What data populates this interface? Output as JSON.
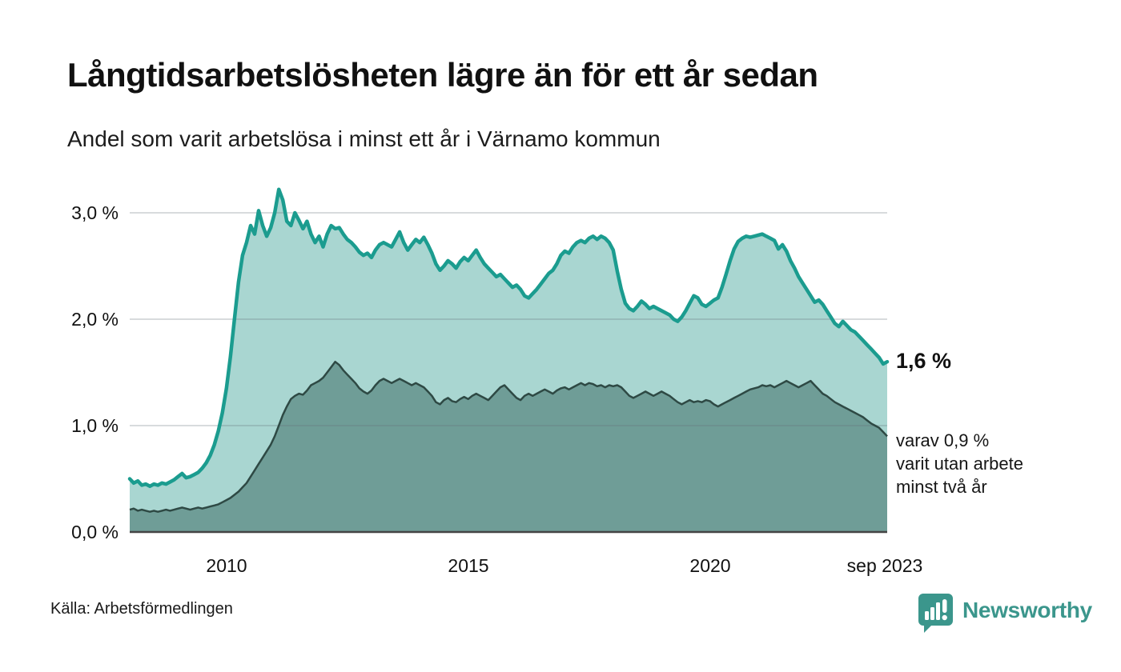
{
  "header": {
    "title": "Långtidsarbetslösheten lägre än för ett år sedan",
    "subtitle": "Andel som varit arbetslösa i minst ett år i Värnamo kommun"
  },
  "annotations": {
    "latest_value": "1,6 %",
    "secondary_line1": "varav 0,9 %",
    "secondary_line2": "varit utan arbete",
    "secondary_line3": "minst två år"
  },
  "footer": {
    "source": "Källa: Arbetsförmedlingen",
    "brand": "Newsworthy"
  },
  "colors": {
    "line_one_year": "#1b9c8f",
    "fill_one_year": "#a9d6d1",
    "line_two_year": "#2e4944",
    "fill_two_year": "#6f9d97",
    "gridline": "#e2e4e8",
    "baseline": "#444444",
    "brand_teal": "#3b968c",
    "text": "#111111"
  },
  "chart_data": {
    "type": "area",
    "title": "Långtidsarbetslösheten lägre än för ett år sedan",
    "subtitle": "Andel som varit arbetslösa i minst ett år i Värnamo kommun",
    "x_unit": "month",
    "x_start_year": 2008.0,
    "x_end_year": 2023.667,
    "x_end_label": "sep 2023",
    "x_tick_labels": [
      "2010",
      "2015",
      "2020",
      "sep 2023"
    ],
    "x_tick_years": [
      2010,
      2015,
      2020,
      2023.667
    ],
    "y_tick_labels": [
      "0,0 %",
      "1,0 %",
      "2,0 %",
      "3,0 %"
    ],
    "y_tick_values": [
      0,
      1,
      2,
      3
    ],
    "ylim": [
      0,
      3.3
    ],
    "grid": "horizontal",
    "legend_position": "none",
    "series": [
      {
        "name": "Andel arbetslösa minst ett år",
        "latest_value_pct": 1.6,
        "values": [
          0.5,
          0.46,
          0.48,
          0.44,
          0.45,
          0.43,
          0.45,
          0.44,
          0.46,
          0.45,
          0.47,
          0.49,
          0.52,
          0.55,
          0.51,
          0.52,
          0.54,
          0.56,
          0.6,
          0.65,
          0.72,
          0.82,
          0.95,
          1.12,
          1.35,
          1.65,
          2.0,
          2.35,
          2.6,
          2.72,
          2.88,
          2.8,
          3.02,
          2.88,
          2.78,
          2.86,
          3.0,
          3.22,
          3.12,
          2.92,
          2.88,
          3.0,
          2.93,
          2.85,
          2.92,
          2.8,
          2.72,
          2.78,
          2.68,
          2.8,
          2.88,
          2.85,
          2.86,
          2.8,
          2.75,
          2.72,
          2.68,
          2.63,
          2.6,
          2.62,
          2.58,
          2.65,
          2.7,
          2.72,
          2.7,
          2.68,
          2.75,
          2.82,
          2.72,
          2.65,
          2.7,
          2.75,
          2.72,
          2.77,
          2.7,
          2.62,
          2.52,
          2.46,
          2.5,
          2.55,
          2.52,
          2.48,
          2.54,
          2.58,
          2.55,
          2.6,
          2.65,
          2.58,
          2.52,
          2.48,
          2.44,
          2.4,
          2.42,
          2.38,
          2.34,
          2.3,
          2.32,
          2.28,
          2.22,
          2.2,
          2.24,
          2.28,
          2.33,
          2.38,
          2.43,
          2.46,
          2.52,
          2.6,
          2.64,
          2.62,
          2.68,
          2.72,
          2.74,
          2.72,
          2.76,
          2.78,
          2.75,
          2.78,
          2.76,
          2.72,
          2.65,
          2.45,
          2.28,
          2.15,
          2.1,
          2.08,
          2.12,
          2.17,
          2.14,
          2.1,
          2.12,
          2.1,
          2.08,
          2.06,
          2.04,
          2.0,
          1.98,
          2.02,
          2.08,
          2.15,
          2.22,
          2.2,
          2.14,
          2.12,
          2.15,
          2.18,
          2.2,
          2.3,
          2.42,
          2.55,
          2.66,
          2.73,
          2.76,
          2.78,
          2.77,
          2.78,
          2.79,
          2.8,
          2.78,
          2.76,
          2.74,
          2.66,
          2.7,
          2.64,
          2.55,
          2.48,
          2.4,
          2.34,
          2.28,
          2.22,
          2.16,
          2.18,
          2.14,
          2.08,
          2.02,
          1.96,
          1.93,
          1.98,
          1.94,
          1.9,
          1.88,
          1.84,
          1.8,
          1.76,
          1.72,
          1.68,
          1.64,
          1.58,
          1.6
        ]
      },
      {
        "name": "varav arbetslösa minst två år",
        "latest_value_pct": 0.9,
        "values": [
          0.21,
          0.22,
          0.2,
          0.21,
          0.2,
          0.19,
          0.2,
          0.19,
          0.2,
          0.21,
          0.2,
          0.21,
          0.22,
          0.23,
          0.22,
          0.21,
          0.22,
          0.23,
          0.22,
          0.23,
          0.24,
          0.25,
          0.26,
          0.28,
          0.3,
          0.32,
          0.35,
          0.38,
          0.42,
          0.46,
          0.52,
          0.58,
          0.64,
          0.7,
          0.76,
          0.82,
          0.9,
          1.0,
          1.1,
          1.18,
          1.25,
          1.28,
          1.3,
          1.29,
          1.33,
          1.38,
          1.4,
          1.42,
          1.45,
          1.5,
          1.55,
          1.6,
          1.57,
          1.52,
          1.48,
          1.44,
          1.4,
          1.35,
          1.32,
          1.3,
          1.33,
          1.38,
          1.42,
          1.44,
          1.42,
          1.4,
          1.42,
          1.44,
          1.42,
          1.4,
          1.38,
          1.4,
          1.38,
          1.36,
          1.32,
          1.28,
          1.22,
          1.2,
          1.24,
          1.26,
          1.23,
          1.22,
          1.25,
          1.27,
          1.25,
          1.28,
          1.3,
          1.28,
          1.26,
          1.24,
          1.28,
          1.32,
          1.36,
          1.38,
          1.34,
          1.3,
          1.26,
          1.24,
          1.28,
          1.3,
          1.28,
          1.3,
          1.32,
          1.34,
          1.32,
          1.3,
          1.33,
          1.35,
          1.36,
          1.34,
          1.36,
          1.38,
          1.4,
          1.38,
          1.4,
          1.39,
          1.37,
          1.38,
          1.36,
          1.38,
          1.37,
          1.38,
          1.36,
          1.32,
          1.28,
          1.26,
          1.28,
          1.3,
          1.32,
          1.3,
          1.28,
          1.3,
          1.32,
          1.3,
          1.28,
          1.25,
          1.22,
          1.2,
          1.22,
          1.24,
          1.22,
          1.23,
          1.22,
          1.24,
          1.23,
          1.2,
          1.18,
          1.2,
          1.22,
          1.24,
          1.26,
          1.28,
          1.3,
          1.32,
          1.34,
          1.35,
          1.36,
          1.38,
          1.37,
          1.38,
          1.36,
          1.38,
          1.4,
          1.42,
          1.4,
          1.38,
          1.36,
          1.38,
          1.4,
          1.42,
          1.38,
          1.34,
          1.3,
          1.28,
          1.25,
          1.22,
          1.2,
          1.18,
          1.16,
          1.14,
          1.12,
          1.1,
          1.08,
          1.05,
          1.02,
          1.0,
          0.98,
          0.94,
          0.9
        ]
      }
    ]
  }
}
